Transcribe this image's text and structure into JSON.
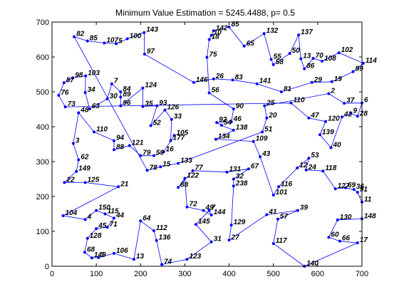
{
  "chart_data": {
    "type": "line",
    "title": "Minimum Value Estimation = 5245.4488, p= 0.5",
    "xlabel": "",
    "ylabel": "",
    "xlim": [
      0,
      700
    ],
    "ylim": [
      0,
      700
    ],
    "xticks": [
      "0",
      "100",
      "200",
      "300",
      "400",
      "500",
      "600",
      "700"
    ],
    "yticks": [
      "0",
      "100",
      "200",
      "300",
      "400",
      "500",
      "600",
      "700"
    ],
    "grid": false,
    "line_color": "#0000ff",
    "marker_color": "#0000ff",
    "points": [
      {
        "label": "82",
        "x": 50,
        "y": 658
      },
      {
        "label": "85",
        "x": 80,
        "y": 646
      },
      {
        "label": "107",
        "x": 118,
        "y": 640
      },
      {
        "label": "5",
        "x": 145,
        "y": 638
      },
      {
        "label": "100",
        "x": 170,
        "y": 652
      },
      {
        "label": "143",
        "x": 208,
        "y": 670
      },
      {
        "label": "97",
        "x": 209,
        "y": 608
      },
      {
        "label": "146",
        "x": 320,
        "y": 527
      },
      {
        "label": "26",
        "x": 365,
        "y": 537
      },
      {
        "label": "83",
        "x": 408,
        "y": 534
      },
      {
        "label": "141",
        "x": 463,
        "y": 523
      },
      {
        "label": "81",
        "x": 518,
        "y": 500
      },
      {
        "label": "29",
        "x": 587,
        "y": 527
      },
      {
        "label": "19",
        "x": 632,
        "y": 529
      },
      {
        "label": "99",
        "x": 680,
        "y": 558
      },
      {
        "label": "114",
        "x": 703,
        "y": 582
      },
      {
        "label": "102",
        "x": 648,
        "y": 612
      },
      {
        "label": "108",
        "x": 610,
        "y": 588
      },
      {
        "label": "70",
        "x": 590,
        "y": 596
      },
      {
        "label": "86",
        "x": 570,
        "y": 566
      },
      {
        "label": "13",
        "x": 562,
        "y": 595
      },
      {
        "label": "137",
        "x": 557,
        "y": 663
      },
      {
        "label": "50",
        "x": 537,
        "y": 610
      },
      {
        "label": "58",
        "x": 500,
        "y": 578
      },
      {
        "label": "55",
        "x": 495,
        "y": 593
      },
      {
        "label": "132",
        "x": 479,
        "y": 667
      },
      {
        "label": "65",
        "x": 434,
        "y": 631
      },
      {
        "label": "85",
        "x": 400,
        "y": 686
      },
      {
        "label": "142",
        "x": 365,
        "y": 675
      },
      {
        "label": "10",
        "x": 360,
        "y": 662
      },
      {
        "label": "18",
        "x": 355,
        "y": 650
      },
      {
        "label": "75",
        "x": 350,
        "y": 599
      },
      {
        "label": "56",
        "x": 355,
        "y": 497
      },
      {
        "label": "90",
        "x": 410,
        "y": 451
      },
      {
        "label": "46",
        "x": 405,
        "y": 414
      },
      {
        "label": "92",
        "x": 372,
        "y": 412
      },
      {
        "label": "54",
        "x": 383,
        "y": 404
      },
      {
        "label": "138",
        "x": 410,
        "y": 390
      },
      {
        "label": "134",
        "x": 370,
        "y": 364
      },
      {
        "label": "109",
        "x": 455,
        "y": 358
      },
      {
        "label": "43",
        "x": 470,
        "y": 314
      },
      {
        "label": "101",
        "x": 500,
        "y": 204
      },
      {
        "label": "116",
        "x": 512,
        "y": 228
      },
      {
        "label": "12",
        "x": 554,
        "y": 282
      },
      {
        "label": "53",
        "x": 580,
        "y": 310
      },
      {
        "label": "24",
        "x": 574,
        "y": 276
      },
      {
        "label": "118",
        "x": 612,
        "y": 273
      },
      {
        "label": "127",
        "x": 640,
        "y": 222
      },
      {
        "label": "69",
        "x": 663,
        "y": 225
      },
      {
        "label": "36",
        "x": 682,
        "y": 220
      },
      {
        "label": "91",
        "x": 690,
        "y": 212
      },
      {
        "label": "11",
        "x": 700,
        "y": 184
      },
      {
        "label": "148",
        "x": 700,
        "y": 136
      },
      {
        "label": "130",
        "x": 645,
        "y": 133
      },
      {
        "label": "60",
        "x": 625,
        "y": 83
      },
      {
        "label": "66",
        "x": 650,
        "y": 72
      },
      {
        "label": "17",
        "x": 690,
        "y": 67
      },
      {
        "label": "140",
        "x": 570,
        "y": 0
      },
      {
        "label": "117",
        "x": 500,
        "y": 65
      },
      {
        "label": "57",
        "x": 510,
        "y": 135
      },
      {
        "label": "39",
        "x": 555,
        "y": 160
      },
      {
        "label": "41",
        "x": 485,
        "y": 148
      },
      {
        "label": "27",
        "x": 400,
        "y": 75
      },
      {
        "label": "129",
        "x": 405,
        "y": 118
      },
      {
        "label": "238",
        "x": 410,
        "y": 230
      },
      {
        "label": "32",
        "x": 410,
        "y": 250
      },
      {
        "label": "67",
        "x": 444,
        "y": 279
      },
      {
        "label": "131",
        "x": 395,
        "y": 270
      },
      {
        "label": "77",
        "x": 318,
        "y": 274
      },
      {
        "label": "88",
        "x": 285,
        "y": 226
      },
      {
        "label": "122",
        "x": 300,
        "y": 252
      },
      {
        "label": "72",
        "x": 305,
        "y": 170
      },
      {
        "label": "49",
        "x": 342,
        "y": 160
      },
      {
        "label": "144",
        "x": 360,
        "y": 147
      },
      {
        "label": "7",
        "x": 355,
        "y": 160
      },
      {
        "label": "145",
        "x": 325,
        "y": 120
      },
      {
        "label": "31",
        "x": 360,
        "y": 70
      },
      {
        "label": "123",
        "x": 305,
        "y": 20
      },
      {
        "label": "74",
        "x": 248,
        "y": 5
      },
      {
        "label": "136",
        "x": 236,
        "y": 74
      },
      {
        "label": "112",
        "x": 230,
        "y": 102
      },
      {
        "label": "64",
        "x": 200,
        "y": 130
      },
      {
        "label": "13",
        "x": 185,
        "y": 20
      },
      {
        "label": "106",
        "x": 140,
        "y": 37
      },
      {
        "label": "1",
        "x": 105,
        "y": 25
      },
      {
        "label": "149",
        "x": 90,
        "y": 24
      },
      {
        "label": "68",
        "x": 74,
        "y": 40
      },
      {
        "label": "128",
        "x": 80,
        "y": 80
      },
      {
        "label": "45",
        "x": 100,
        "y": 108
      },
      {
        "label": "71",
        "x": 125,
        "y": 112
      },
      {
        "label": "44",
        "x": 140,
        "y": 138
      },
      {
        "label": "115",
        "x": 120,
        "y": 150
      },
      {
        "label": "150",
        "x": 100,
        "y": 160
      },
      {
        "label": "4",
        "x": 75,
        "y": 134
      },
      {
        "label": "104",
        "x": 25,
        "y": 145
      },
      {
        "label": "21",
        "x": 150,
        "y": 228
      },
      {
        "label": "125",
        "x": 75,
        "y": 240
      },
      {
        "label": "22",
        "x": 28,
        "y": 240
      },
      {
        "label": "149",
        "x": 55,
        "y": 272
      },
      {
        "label": "62",
        "x": 60,
        "y": 305
      },
      {
        "label": "3",
        "x": 48,
        "y": 352
      },
      {
        "label": "48",
        "x": 60,
        "y": 440
      },
      {
        "label": "110",
        "x": 95,
        "y": 385
      },
      {
        "label": "94",
        "x": 140,
        "y": 360
      },
      {
        "label": "88",
        "x": 140,
        "y": 334
      },
      {
        "label": "121",
        "x": 175,
        "y": 346
      },
      {
        "label": "79",
        "x": 200,
        "y": 317
      },
      {
        "label": "59",
        "x": 230,
        "y": 317
      },
      {
        "label": "16",
        "x": 252,
        "y": 328
      },
      {
        "label": "105",
        "x": 276,
        "y": 375
      },
      {
        "label": "177",
        "x": 268,
        "y": 360
      },
      {
        "label": "33",
        "x": 270,
        "y": 421
      },
      {
        "label": "126",
        "x": 255,
        "y": 448
      },
      {
        "label": "52",
        "x": 223,
        "y": 403
      },
      {
        "label": "93",
        "x": 237,
        "y": 460
      },
      {
        "label": "35",
        "x": 205,
        "y": 458
      },
      {
        "label": "124",
        "x": 205,
        "y": 511
      },
      {
        "label": "96",
        "x": 155,
        "y": 460
      },
      {
        "label": "89",
        "x": 155,
        "y": 485
      },
      {
        "label": "84",
        "x": 155,
        "y": 500
      },
      {
        "label": "7",
        "x": 135,
        "y": 523
      },
      {
        "label": "30",
        "x": 125,
        "y": 480
      },
      {
        "label": "63",
        "x": 85,
        "y": 451
      },
      {
        "label": "34",
        "x": 75,
        "y": 498
      },
      {
        "label": "103",
        "x": 76,
        "y": 546
      },
      {
        "label": "98",
        "x": 47,
        "y": 540
      },
      {
        "label": "87",
        "x": 27,
        "y": 526
      },
      {
        "label": "76",
        "x": 15,
        "y": 490
      },
      {
        "label": "73",
        "x": 30,
        "y": 457
      },
      {
        "label": "110",
        "x": 540,
        "y": 468
      },
      {
        "label": "47",
        "x": 580,
        "y": 425
      },
      {
        "label": "120",
        "x": 618,
        "y": 415
      },
      {
        "label": "139",
        "x": 605,
        "y": 377
      },
      {
        "label": "40",
        "x": 630,
        "y": 340
      },
      {
        "label": "42",
        "x": 655,
        "y": 428
      },
      {
        "label": "9",
        "x": 675,
        "y": 438
      },
      {
        "label": "28",
        "x": 690,
        "y": 430
      },
      {
        "label": "6",
        "x": 700,
        "y": 468
      },
      {
        "label": "37",
        "x": 660,
        "y": 467
      },
      {
        "label": "2",
        "x": 625,
        "y": 495
      },
      {
        "label": "25",
        "x": 480,
        "y": 460
      },
      {
        "label": "20",
        "x": 485,
        "y": 425
      },
      {
        "label": "51",
        "x": 475,
        "y": 385
      },
      {
        "label": "133",
        "x": 285,
        "y": 295
      },
      {
        "label": "15",
        "x": 245,
        "y": 285
      },
      {
        "label": "78",
        "x": 215,
        "y": 275
      }
    ],
    "route": [
      "82",
      "85",
      "107",
      "5",
      "100",
      "143",
      "97",
      "146",
      "26",
      "83",
      "141",
      "81",
      "29",
      "19",
      "99",
      "114",
      "102",
      "108",
      "70",
      "86",
      "13",
      "137",
      "50",
      "58",
      "55",
      "132",
      "65",
      "85",
      "142",
      "10",
      "18",
      "75",
      "56",
      "90",
      "46",
      "92",
      "54",
      "138",
      "134",
      "109",
      "43",
      "101",
      "116",
      "12",
      "53",
      "24",
      "118",
      "127",
      "69",
      "36",
      "91",
      "11",
      "148",
      "130",
      "60",
      "66",
      "17",
      "140",
      "117",
      "57",
      "39",
      "41",
      "27",
      "129",
      "238",
      "32",
      "67",
      "131",
      "77",
      "88",
      "122",
      "72",
      "49",
      "144",
      "7",
      "145",
      "31",
      "123",
      "74",
      "136",
      "112",
      "64",
      "13",
      "106",
      "1",
      "149",
      "68",
      "128",
      "45",
      "71",
      "44",
      "115",
      "150",
      "4",
      "104",
      "21",
      "125",
      "22",
      "149",
      "62",
      "3",
      "48",
      "110",
      "94",
      "88",
      "121",
      "79",
      "59",
      "16",
      "105",
      "177",
      "33",
      "126",
      "52",
      "93",
      "35",
      "124",
      "96",
      "89",
      "84",
      "7",
      "30",
      "63",
      "34",
      "103",
      "98",
      "87",
      "76",
      "73"
    ]
  }
}
